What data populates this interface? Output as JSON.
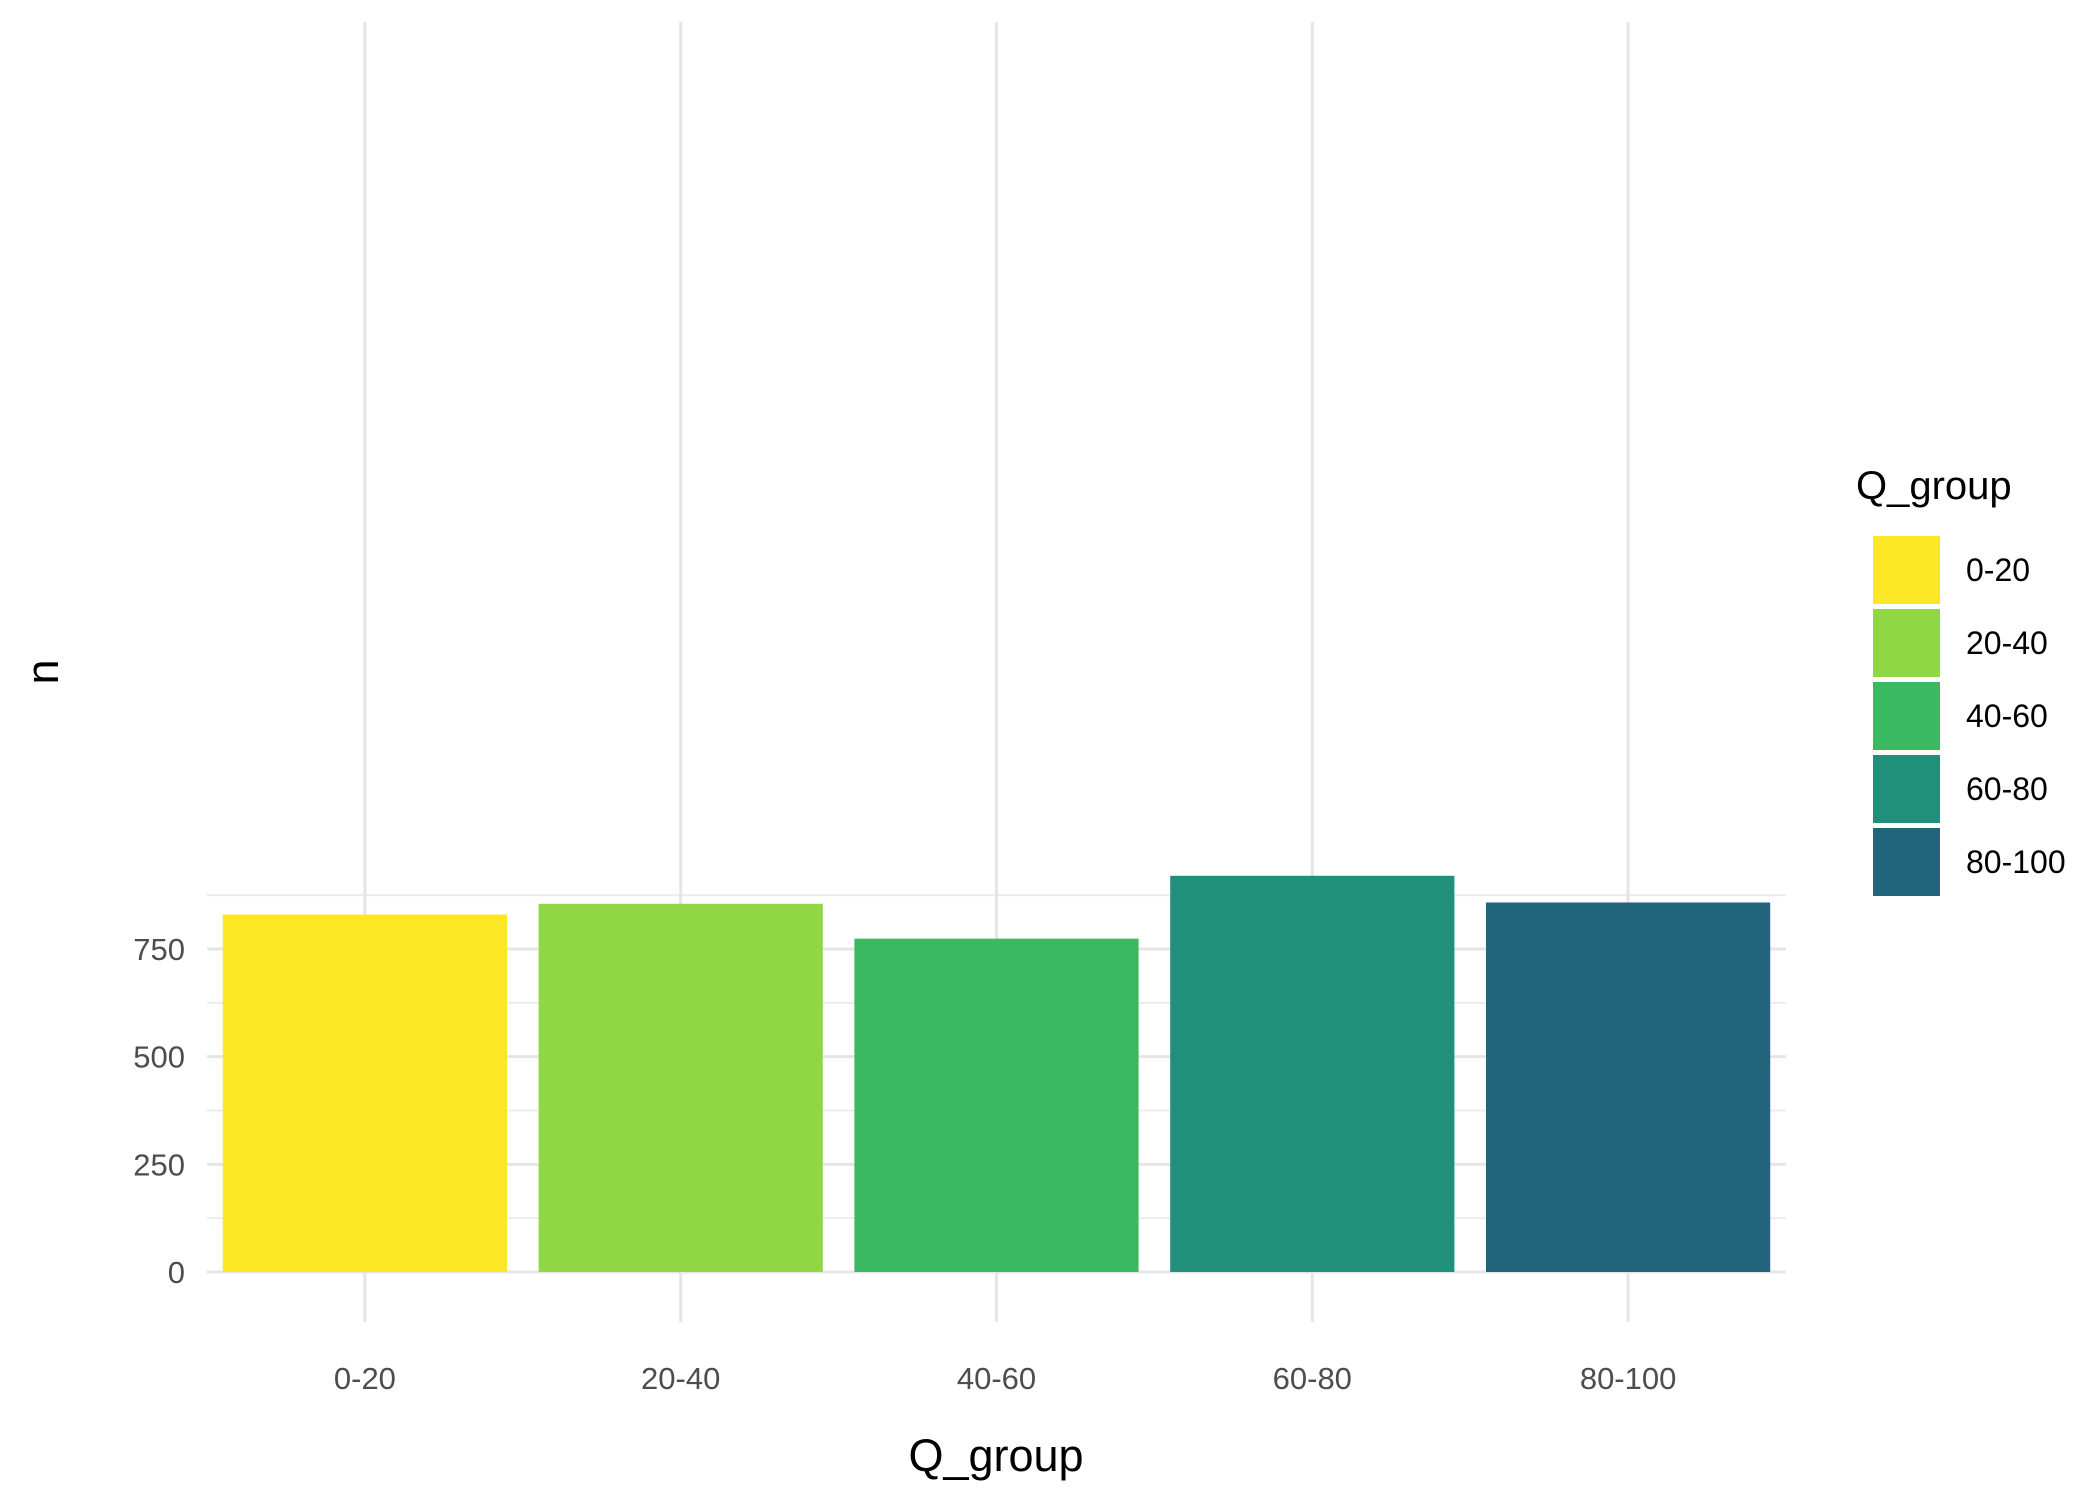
{
  "chart_data": {
    "type": "bar",
    "title": "",
    "xlabel": "Q_group",
    "ylabel": "n",
    "categories": [
      "0-20",
      "20-40",
      "40-60",
      "60-80",
      "80-100"
    ],
    "values": [
      830,
      855,
      774,
      920,
      858
    ],
    "ylim": [
      0,
      960
    ],
    "yticks": [
      0,
      250,
      500,
      750
    ],
    "ytick_labels": [
      "0",
      "250",
      "500",
      "750"
    ],
    "colors": [
      "#FDE725",
      "#8FD744",
      "#3BB862",
      "#21907A",
      "#23647D"
    ],
    "grid": true,
    "legend": {
      "title": "Q_group",
      "placement": "right",
      "entries": [
        "0-20",
        "20-40",
        "40-60",
        "60-80",
        "80-100"
      ]
    }
  }
}
